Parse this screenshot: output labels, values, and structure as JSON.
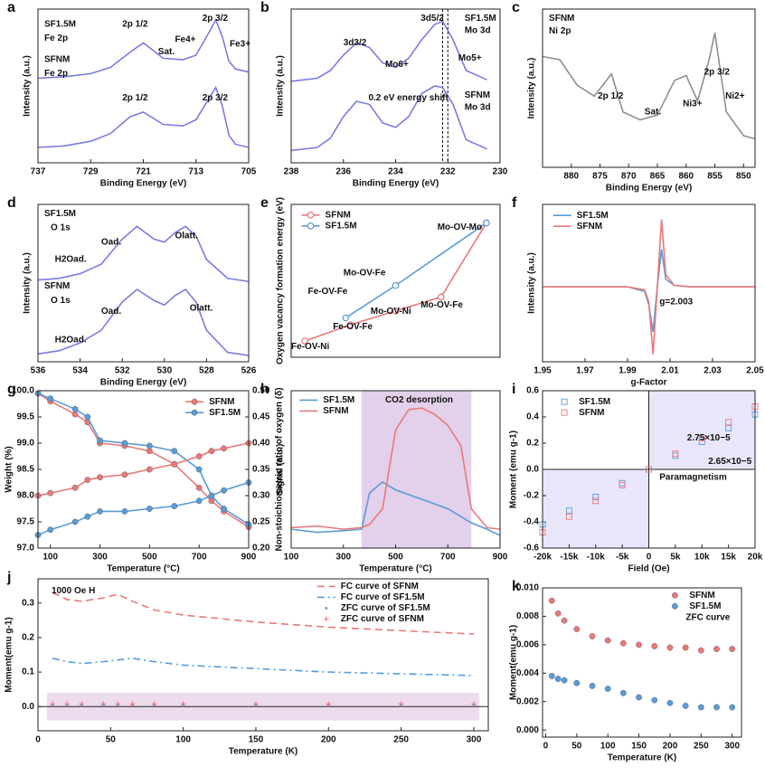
{
  "chart_data": [
    {
      "type": "line",
      "label": "a",
      "xlabel": "Binding Energy (eV)",
      "ylabel": "Intensity (a.u.)",
      "xlim": [
        737,
        705
      ],
      "ylim": [
        0,
        10
      ],
      "xticks": [
        737,
        729,
        721,
        713,
        705
      ],
      "x": [
        737,
        733,
        729,
        726,
        723,
        721,
        718,
        715,
        713,
        711,
        710,
        709,
        708,
        707,
        705
      ],
      "series": [
        {
          "color": "#7b7be0",
          "style": "line",
          "values": [
            5.5,
            5.6,
            5.8,
            6.2,
            7.2,
            7.8,
            6.8,
            6.7,
            7.0,
            8.5,
            9.3,
            8.2,
            6.6,
            6.1,
            5.9
          ]
        },
        {
          "color": "#7b7be0",
          "style": "line",
          "values": [
            1.0,
            1.1,
            1.4,
            1.9,
            3.0,
            3.3,
            2.5,
            2.4,
            2.8,
            4.2,
            4.9,
            3.7,
            1.8,
            1.2,
            1.0
          ]
        }
      ],
      "annotations": [
        "SF1.5M",
        "Fe 2p",
        "SFNM",
        "Fe 2p",
        "2p 1/2",
        "Sat.",
        "Fe4+",
        "2p 3/2",
        "Fe3+",
        "2p 1/2",
        "2p 3/2"
      ]
    },
    {
      "type": "line",
      "label": "b",
      "xlabel": "Binding Energy (eV)",
      "ylabel": "Intensity (a.u.)",
      "xlim": [
        238,
        230
      ],
      "ylim": [
        0,
        10
      ],
      "xticks": [
        238,
        236,
        234,
        232,
        230
      ],
      "x": [
        238,
        237,
        236.5,
        236,
        235.5,
        235,
        234.5,
        234,
        233.5,
        233,
        232.5,
        232.2,
        231.8,
        231.3,
        230.5
      ],
      "vlines": [
        232.2,
        232.0
      ],
      "series": [
        {
          "color": "#7b7be0",
          "style": "line",
          "values": [
            5.3,
            5.5,
            6.0,
            7.0,
            7.8,
            7.5,
            6.5,
            6.2,
            6.8,
            8.0,
            9.0,
            9.2,
            8.0,
            6.0,
            5.4
          ]
        },
        {
          "color": "#7b7be0",
          "style": "line",
          "values": [
            0.8,
            1.0,
            1.6,
            3.0,
            4.0,
            3.8,
            2.6,
            2.3,
            3.0,
            4.5,
            5.0,
            4.9,
            3.8,
            1.5,
            0.9
          ]
        }
      ],
      "annotations": [
        "3d3/2",
        "3d5/2",
        "SF1.5M",
        "Mo 3d",
        "Mo6+",
        "Mo5+",
        "0.2 eV energy shift",
        "SFNM",
        "Mo 3d"
      ]
    },
    {
      "type": "line",
      "label": "c",
      "xlabel": "Binding Energy (eV)",
      "ylabel": "Intensity (a.u.)",
      "xlim": [
        885,
        848
      ],
      "ylim": [
        0,
        10
      ],
      "xticks": [
        880,
        875,
        870,
        865,
        860,
        855,
        850
      ],
      "x": [
        885,
        882,
        879,
        876,
        873,
        871,
        868,
        865,
        862,
        860,
        858,
        856,
        855,
        853,
        850,
        848
      ],
      "series": [
        {
          "color": "#8f8f8f",
          "style": "line",
          "values": [
            7.0,
            6.8,
            5.2,
            4.5,
            5.9,
            3.5,
            3.0,
            3.3,
            5.5,
            5.8,
            4.2,
            6.8,
            8.5,
            3.5,
            2.0,
            1.8
          ]
        }
      ],
      "annotations": [
        "SFNM",
        "Ni 2p",
        "2p 3/2",
        "2p 1/2",
        "Sat.",
        "Ni3+",
        "Ni2+"
      ]
    },
    {
      "type": "line",
      "label": "d",
      "xlabel": "Binding Energy (eV)",
      "ylabel": "Intensity (a.u.)",
      "xlim": [
        536,
        526
      ],
      "ylim": [
        0,
        10
      ],
      "xticks": [
        536,
        534,
        532,
        530,
        528,
        526
      ],
      "x": [
        536,
        535,
        534,
        533,
        532,
        531.3,
        530.5,
        530,
        529.5,
        529,
        528.5,
        528,
        527,
        526
      ],
      "series": [
        {
          "color": "#7b7be0",
          "style": "line",
          "values": [
            5.2,
            5.3,
            5.6,
            6.2,
            7.8,
            8.6,
            7.8,
            7.6,
            8.2,
            8.6,
            8.0,
            6.5,
            5.3,
            5.1
          ]
        },
        {
          "color": "#7b7be0",
          "style": "line",
          "values": [
            0.5,
            0.7,
            1.2,
            2.0,
            3.8,
            4.6,
            3.9,
            3.6,
            4.2,
            4.6,
            3.8,
            2.0,
            0.6,
            0.4
          ]
        }
      ],
      "annotations": [
        "SF1.5M",
        "O 1s",
        "Oad.",
        "Olatt.",
        "H2Oad.",
        "SFNM",
        "O 1s",
        "Oad.",
        "Olatt.",
        "H2Oad."
      ]
    },
    {
      "type": "line",
      "label": "e",
      "ylabel": "Oxygen vacancy formation energy (eV)",
      "xlim": [
        -0.3,
        4.3
      ],
      "ylim": [
        1.3,
        4.6
      ],
      "series": [
        {
          "name": "SFNM",
          "color": "#e8787a",
          "style": "line+markers",
          "marker": "open-circle",
          "x": [
            0,
            1,
            2,
            3,
            4
          ],
          "values": [
            1.65,
            2.0,
            2.3,
            2.6,
            4.2
          ]
        },
        {
          "name": "SF1.5M",
          "color": "#5b9bd5",
          "style": "line+markers",
          "marker": "open-circle",
          "x": [
            0.9,
            2,
            4
          ],
          "values": [
            2.15,
            2.85,
            4.2
          ]
        }
      ],
      "annotations": [
        "Mo-OV-Mo",
        "Mo-OV-Fe",
        "Fe-OV-Fe",
        "Mo-OV-Ni",
        "Mo-OV-Fe",
        "Fe-OV-Fe",
        "Fe-OV-Ni"
      ]
    },
    {
      "type": "line",
      "label": "f",
      "xlabel": "g-Factor",
      "ylabel": "Intensity (a.u.)",
      "xlim": [
        1.95,
        2.05
      ],
      "ylim": [
        -5,
        5.5
      ],
      "xticks": [
        1.95,
        1.97,
        1.99,
        2.01,
        2.03,
        2.05
      ],
      "x": [
        1.95,
        1.99,
        1.998,
        2.0,
        2.002,
        2.004,
        2.006,
        2.008,
        2.012,
        2.02,
        2.05
      ],
      "series": [
        {
          "name": "SF1.5M",
          "color": "#5b9bd5",
          "style": "line",
          "values": [
            0,
            0,
            -0.3,
            -1.2,
            -3.0,
            0,
            2.5,
            0.5,
            0.1,
            0,
            0
          ]
        },
        {
          "name": "SFNM",
          "color": "#e8787a",
          "style": "line",
          "values": [
            0,
            0,
            -0.2,
            -1.0,
            -4.5,
            0,
            4.5,
            0.8,
            0.1,
            0,
            0
          ]
        }
      ],
      "annotations": [
        "g=2.003"
      ]
    },
    {
      "type": "line",
      "label": "g",
      "xlabel": "Temperature (°C)",
      "ylabel": "Weight (%)",
      "y2label": "Non-stoichiometric ratio of oxygen (δ)",
      "xlim": [
        50,
        900
      ],
      "ylim": [
        97,
        100
      ],
      "y2lim": [
        0.2,
        0.5
      ],
      "xticks": [
        100,
        300,
        500,
        700,
        900
      ],
      "yticks": [
        {
          "value": 97,
          "label": "97.0"
        },
        97.5,
        {
          "value": 98,
          "label": "98.0"
        },
        98.5,
        {
          "value": 99,
          "label": "99.0"
        },
        99.5,
        {
          "value": 100,
          "label": "100.0"
        }
      ],
      "y2ticks": [
        {
          "value": 0.2,
          "label": "0.20"
        },
        0.25,
        {
          "value": 0.3,
          "label": "0.30"
        },
        0.35,
        {
          "value": 0.4,
          "label": "0.40"
        },
        0.45,
        {
          "value": 0.5,
          "label": "0.50"
        }
      ],
      "x": [
        50,
        100,
        200,
        250,
        300,
        400,
        500,
        600,
        700,
        750,
        800,
        900
      ],
      "series": [
        {
          "name": "SFNM",
          "color": "#e8787a",
          "style": "line+markers",
          "marker": "circle",
          "values": [
            99.95,
            99.8,
            99.55,
            99.4,
            99.0,
            98.95,
            98.85,
            98.6,
            98.15,
            97.9,
            97.7,
            97.4
          ]
        },
        {
          "name": "SF1.5M",
          "color": "#5b9bd5",
          "style": "line+markers",
          "marker": "circle",
          "values": [
            99.95,
            99.85,
            99.65,
            99.5,
            99.05,
            99.0,
            98.95,
            98.85,
            98.5,
            98.0,
            97.75,
            97.45
          ]
        },
        {
          "color": "#e8787a",
          "style": "line+markers",
          "marker": "circle",
          "axis": "y2",
          "values": [
            0.3,
            0.305,
            0.315,
            0.33,
            0.335,
            0.34,
            0.35,
            0.36,
            0.375,
            0.385,
            0.39,
            0.4
          ]
        },
        {
          "color": "#5b9bd5",
          "style": "line+markers",
          "marker": "circle",
          "axis": "y2",
          "values": [
            0.225,
            0.235,
            0.25,
            0.26,
            0.27,
            0.27,
            0.275,
            0.28,
            0.29,
            0.3,
            0.31,
            0.325
          ]
        }
      ]
    },
    {
      "type": "line",
      "label": "h",
      "xlabel": "Temperature (°C)",
      "ylabel": "Signal (a.u.)",
      "xlim": [
        100,
        900
      ],
      "ylim": [
        0,
        10
      ],
      "xticks": [
        100,
        300,
        500,
        700,
        900
      ],
      "band": [
        370,
        790
      ],
      "x": [
        100,
        200,
        300,
        370,
        400,
        450,
        500,
        550,
        600,
        650,
        700,
        750,
        790,
        850,
        900
      ],
      "series": [
        {
          "name": "SF1.5M",
          "color": "#5b9bd5",
          "style": "line",
          "values": [
            1.2,
            1.0,
            1.1,
            1.2,
            3.5,
            4.2,
            3.7,
            3.4,
            3.1,
            2.8,
            2.5,
            2.0,
            1.6,
            1.2,
            0.8
          ]
        },
        {
          "name": "SFNM",
          "color": "#e8787a",
          "style": "line",
          "values": [
            1.3,
            1.4,
            1.2,
            1.3,
            1.5,
            2.5,
            7.5,
            8.8,
            8.9,
            8.5,
            7.8,
            6.5,
            2.5,
            1.3,
            1.2
          ]
        }
      ],
      "annotations": [
        "CO2 desorption"
      ]
    },
    {
      "type": "scatter",
      "label": "i",
      "xlabel": "Field (Oe)",
      "ylabel": "Moment (emu g-1)",
      "xlim": [
        -20000,
        20000
      ],
      "ylim": [
        -0.6,
        0.6
      ],
      "xticks": [
        {
          "value": -20000,
          "label": "-20k"
        },
        {
          "value": -15000,
          "label": "-15k"
        },
        {
          "value": -10000,
          "label": "-10k"
        },
        {
          "value": -5000,
          "label": "-5k"
        },
        0,
        {
          "value": 5000,
          "label": "5k"
        },
        {
          "value": 10000,
          "label": "10k"
        },
        {
          "value": 15000,
          "label": "15k"
        },
        {
          "value": 20000,
          "label": "20k"
        }
      ],
      "yticks": [
        -0.6,
        -0.4,
        -0.2,
        {
          "value": 0,
          "label": "0.0"
        },
        0.2,
        0.4,
        0.6
      ],
      "x": [
        -20000,
        -15000,
        -10000,
        -5000,
        0,
        5000,
        10000,
        15000,
        20000
      ],
      "series": [
        {
          "name": "SF1.5M",
          "color": "#5b9bd5",
          "style": "markers",
          "marker": "open-square",
          "values": [
            -0.42,
            -0.315,
            -0.21,
            -0.105,
            0,
            0.105,
            0.21,
            0.315,
            0.42
          ]
        },
        {
          "name": "SFNM",
          "color": "#e8787a",
          "style": "markers",
          "marker": "open-square",
          "values": [
            -0.48,
            -0.36,
            -0.24,
            -0.12,
            0,
            0.12,
            0.24,
            0.36,
            0.48
          ]
        }
      ],
      "annotations": [
        "2.75×10−5",
        "2.65×10−5",
        "Paramagnetism"
      ]
    },
    {
      "type": "line",
      "label": "j",
      "xlabel": "Temperature (K)",
      "ylabel": "Moment(emu g-1)",
      "xlim": [
        0,
        310
      ],
      "ylim": [
        -0.07,
        0.37
      ],
      "xticks": [
        0,
        50,
        100,
        150,
        200,
        250,
        300
      ],
      "yticks": [
        {
          "value": 0,
          "label": "0.0"
        },
        0.1,
        0.2,
        0.3
      ],
      "x": [
        10,
        20,
        30,
        45,
        55,
        65,
        80,
        100,
        150,
        200,
        250,
        300
      ],
      "series": [
        {
          "name": "FC curve of SFNM",
          "color": "#e8787a",
          "style": "line",
          "dash": "dashed",
          "values": [
            0.33,
            0.31,
            0.305,
            0.315,
            0.325,
            0.305,
            0.28,
            0.265,
            0.245,
            0.23,
            0.22,
            0.21
          ]
        },
        {
          "name": "FC curve of SF1.5M",
          "color": "#5b9bd5",
          "style": "line",
          "dash": "dashdot",
          "values": [
            0.14,
            0.13,
            0.125,
            0.13,
            0.135,
            0.14,
            0.13,
            0.12,
            0.11,
            0.1,
            0.095,
            0.09
          ]
        },
        {
          "name": "ZFC curve of SF1.5M",
          "color": "#5b9bd5",
          "style": "markers",
          "marker": "dot",
          "values": [
            0.005,
            0.005,
            0.005,
            0.005,
            0.005,
            0.005,
            0.005,
            0.005,
            0.005,
            0.005,
            0.005,
            0.005
          ]
        },
        {
          "name": "ZFC curve of SFNM",
          "color": "#e8787a",
          "style": "markers",
          "marker": "plus",
          "values": [
            0.008,
            0.008,
            0.008,
            0.008,
            0.008,
            0.008,
            0.008,
            0.008,
            0.008,
            0.008,
            0.008,
            0.008
          ]
        }
      ],
      "annotations": [
        "1000 Oe H"
      ]
    },
    {
      "type": "scatter",
      "label": "k",
      "xlabel": "Temperature (K)",
      "ylabel": "Moment(emu g-1)",
      "xlim": [
        -5,
        315
      ],
      "ylim": [
        -0.0005,
        0.01
      ],
      "xticks": [
        0,
        50,
        100,
        150,
        200,
        250,
        300
      ],
      "yticks": [
        {
          "value": 0,
          "label": "0.000"
        },
        {
          "value": 0.002,
          "label": "0.002"
        },
        {
          "value": 0.004,
          "label": "0.004"
        },
        {
          "value": 0.006,
          "label": "0.006"
        },
        {
          "value": 0.008,
          "label": "0.008"
        },
        {
          "value": 0.01,
          "label": "0.010"
        }
      ],
      "x": [
        10,
        20,
        30,
        50,
        75,
        100,
        125,
        150,
        175,
        200,
        225,
        250,
        275,
        300
      ],
      "series": [
        {
          "name": "SFNM",
          "color": "#e8787a",
          "style": "markers",
          "marker": "circle",
          "values": [
            0.0091,
            0.0082,
            0.0077,
            0.0071,
            0.0066,
            0.0063,
            0.0061,
            0.006,
            0.0059,
            0.0058,
            0.0058,
            0.0056,
            0.0057,
            0.0057
          ]
        },
        {
          "name": "SF1.5M",
          "color": "#5b9bd5",
          "style": "markers",
          "marker": "circle",
          "values": [
            0.0038,
            0.0036,
            0.0035,
            0.0033,
            0.0031,
            0.0029,
            0.0026,
            0.0023,
            0.0021,
            0.0019,
            0.0017,
            0.0016,
            0.0016,
            0.0016
          ]
        }
      ],
      "annotations": [
        "ZFC curve"
      ]
    }
  ]
}
